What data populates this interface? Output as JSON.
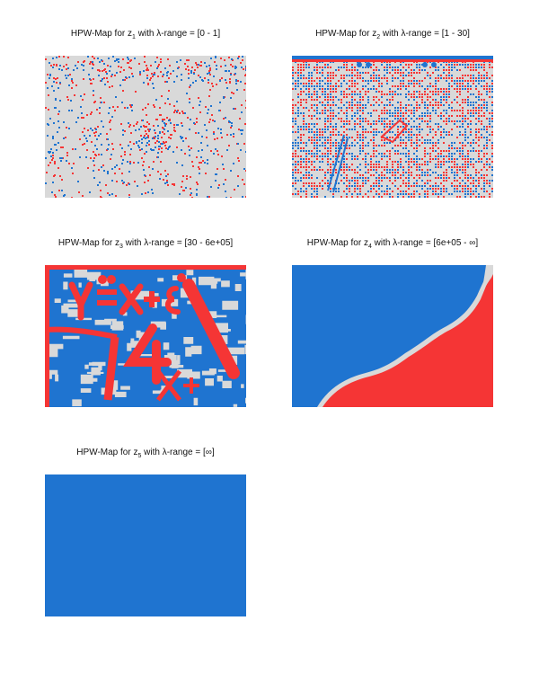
{
  "colors": {
    "gray": "#d9d9d9",
    "blue": "#1f74d0",
    "red": "#f53535"
  },
  "chart_data": [
    {
      "type": "heatmap",
      "title": {
        "prefix": "HPW-Map for z",
        "sub": "1",
        "suffix": " with λ-range = [0 - 1]"
      },
      "pattern": "sparse-noise"
    },
    {
      "type": "heatmap",
      "title": {
        "prefix": "HPW-Map for z",
        "sub": "2",
        "suffix": " with λ-range = [1 - 30]"
      },
      "pattern": "dense-noise"
    },
    {
      "type": "heatmap",
      "title": {
        "prefix": "HPW-Map for z",
        "sub": "3",
        "suffix": " with λ-range = [30 - 6e+05]"
      },
      "pattern": "blobs-with-glyphs"
    },
    {
      "type": "heatmap",
      "title": {
        "prefix": "HPW-Map for z",
        "sub": "4",
        "suffix": " with λ-range = [6e+05 - ∞]"
      },
      "pattern": "diagonal-split"
    },
    {
      "type": "heatmap",
      "title": {
        "prefix": "HPW-Map for z",
        "sub": "5",
        "suffix": " with λ-range = [∞]"
      },
      "pattern": "uniform-blue"
    }
  ]
}
